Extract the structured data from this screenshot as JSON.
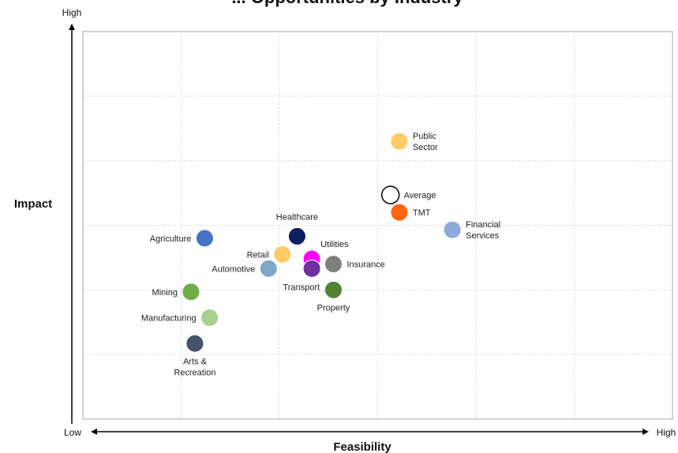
{
  "chart_data": {
    "type": "scatter",
    "title": "... Opportunities by Industry",
    "xlabel": "Feasibility",
    "ylabel": "Impact",
    "x_low_label": "Low",
    "x_high_label": "High",
    "y_high_label": "High",
    "xlim": [
      0,
      6
    ],
    "ylim": [
      0,
      6
    ],
    "grid": true,
    "points": [
      {
        "label": "Public\nSector",
        "x": 3.22,
        "y": 4.3,
        "color": "#FFCB66",
        "label_pos": "right"
      },
      {
        "label": "Average",
        "x": 3.13,
        "y": 3.47,
        "color": "#ffffff",
        "stroke": "#000000",
        "label_pos": "right"
      },
      {
        "label": "TMT",
        "x": 3.22,
        "y": 3.2,
        "color": "#FF6411",
        "label_pos": "right"
      },
      {
        "label": "Financial\nServices",
        "x": 3.76,
        "y": 2.93,
        "color": "#8EA9DB",
        "label_pos": "right"
      },
      {
        "label": "Healthcare",
        "x": 2.18,
        "y": 2.83,
        "color": "#0A2060",
        "label_pos": "above"
      },
      {
        "label": "Agriculture",
        "x": 1.24,
        "y": 2.8,
        "color": "#4472C4",
        "label_pos": "left"
      },
      {
        "label": "Utilities",
        "x": 2.33,
        "y": 2.48,
        "color": "#FF00FF",
        "label_pos": "upper-right"
      },
      {
        "label": "Retail",
        "x": 2.03,
        "y": 2.55,
        "color": "#FFCB66",
        "label_pos": "left"
      },
      {
        "label": "Insurance",
        "x": 2.55,
        "y": 2.4,
        "color": "#7F7F7F",
        "label_pos": "right"
      },
      {
        "label": "Automotive",
        "x": 1.89,
        "y": 2.33,
        "color": "#7FA7C7",
        "label_pos": "left"
      },
      {
        "label": "Transport",
        "x": 2.33,
        "y": 2.33,
        "color": "#7030A0",
        "label_pos": "below-left"
      },
      {
        "label": "Property",
        "x": 2.55,
        "y": 2.0,
        "color": "#548235",
        "label_pos": "below"
      },
      {
        "label": "Mining",
        "x": 1.1,
        "y": 1.97,
        "color": "#70AD47",
        "label_pos": "left"
      },
      {
        "label": "Manufacturing",
        "x": 1.29,
        "y": 1.57,
        "color": "#A9D18E",
        "label_pos": "left"
      },
      {
        "label": "Arts &\nRecreation",
        "x": 1.14,
        "y": 1.17,
        "color": "#44546A",
        "label_pos": "below"
      }
    ]
  }
}
